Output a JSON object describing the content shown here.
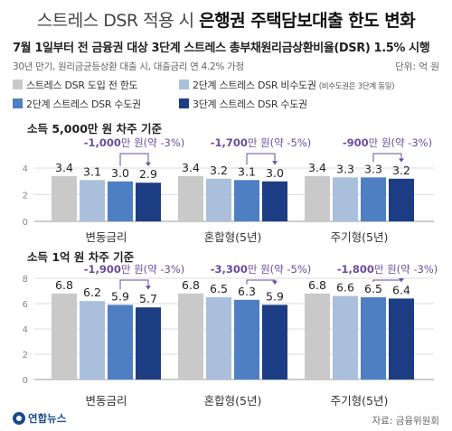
{
  "header": {
    "title_prefix": "스트레스 DSR 적용 시",
    "title_main": "은행권 주택담보대출 한도 변화",
    "subtitle": "7월 1일부터 전 금융권 대상 3단계 스트레스 총부채원리금상환비율(DSR) 1.5% 시행",
    "note": "30년 만기, 원리금균등상환 대출 시, 대출금리 연 4.2% 가정",
    "unit": "단위: 억 원"
  },
  "legend": [
    {
      "label": "스트레스 DSR 도입 전 한도",
      "note": "",
      "color": "#c9c9c9"
    },
    {
      "label": "2단계 스트레스 DSR 비수도권",
      "note": "(비수도권은 3단계 동일)",
      "color": "#a9bfdc"
    },
    {
      "label": "2단계 스트레스 DSR 수도권",
      "note": "",
      "color": "#4f7fc3"
    },
    {
      "label": "3단계 스트레스 DSR 수도권",
      "note": "",
      "color": "#1c3d83"
    }
  ],
  "colors": {
    "annotation": "#6a4c9c",
    "grid": "#dddddd",
    "axis": "#999999"
  },
  "chart_data": [
    {
      "type": "bar",
      "title": "소득 5,000만 원 차주 기준",
      "categories": [
        "변동금리",
        "혼합형(5년)",
        "주기형(5년)"
      ],
      "series": [
        {
          "name": "스트레스 DSR 도입 전 한도",
          "values": [
            3.4,
            3.4,
            3.4
          ]
        },
        {
          "name": "2단계 스트레스 DSR 비수도권",
          "values": [
            3.1,
            3.2,
            3.3
          ]
        },
        {
          "name": "2단계 스트레스 DSR 수도권",
          "values": [
            3.0,
            3.1,
            3.3
          ]
        },
        {
          "name": "3단계 스트레스 DSR 수도권",
          "values": [
            2.9,
            3.0,
            3.2
          ]
        }
      ],
      "ylim": [
        0,
        4
      ],
      "yticks": [
        0,
        2,
        4
      ],
      "annotations": [
        {
          "prefix": "-1,000",
          "suffix": "만 원(약 -3%)"
        },
        {
          "prefix": "-1,700",
          "suffix": "만 원(약 -5%)"
        },
        {
          "prefix": "-900",
          "suffix": "만 원(약 -3%)"
        }
      ]
    },
    {
      "type": "bar",
      "title": "소득 1억 원 차주 기준",
      "categories": [
        "변동금리",
        "혼합형(5년)",
        "주기형(5년)"
      ],
      "series": [
        {
          "name": "스트레스 DSR 도입 전 한도",
          "values": [
            6.8,
            6.8,
            6.8
          ]
        },
        {
          "name": "2단계 스트레스 DSR 비수도권",
          "values": [
            6.2,
            6.5,
            6.6
          ]
        },
        {
          "name": "2단계 스트레스 DSR 수도권",
          "values": [
            5.9,
            6.3,
            6.5
          ]
        },
        {
          "name": "3단계 스트레스 DSR 수도권",
          "values": [
            5.7,
            5.9,
            6.4
          ]
        }
      ],
      "ylim": [
        0,
        8
      ],
      "yticks": [
        0,
        2,
        4,
        6,
        8
      ],
      "annotations": [
        {
          "prefix": "-1,900",
          "suffix": "만 원(약 -3%)"
        },
        {
          "prefix": "-3,300",
          "suffix": "만 원(약 -5%)"
        },
        {
          "prefix": "-1,800",
          "suffix": "만 원(약 -3%)"
        }
      ]
    }
  ],
  "footer": {
    "logo": "연합뉴스",
    "source": "자료: 금융위원회"
  }
}
